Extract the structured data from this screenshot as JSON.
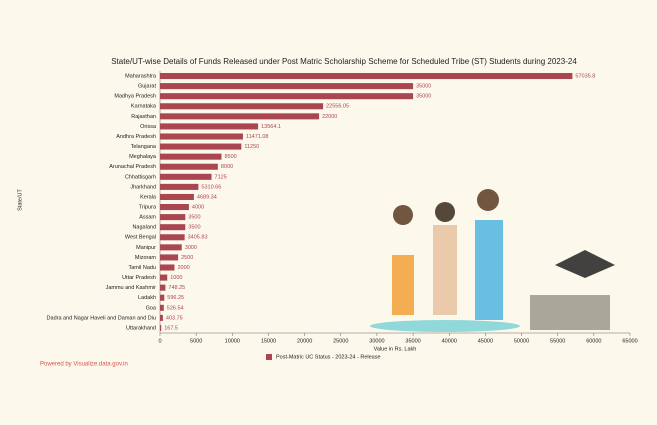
{
  "chart_data": {
    "type": "bar",
    "title": "State/UT-wise Details of Funds Released under Post Matric Scholarship Scheme for Scheduled Tribe (ST) Students during 2023-24",
    "x_label": "Value in Rs. Lakh",
    "y_label": "State/UT",
    "categories": [
      "Maharashtra",
      "Gujarat",
      "Madhya Pradesh",
      "Karnataka",
      "Rajasthan",
      "Orissa",
      "Andhra Pradesh",
      "Telangana",
      "Meghalaya",
      "Arunachal Pradesh",
      "Chhattisgarh",
      "Jharkhand",
      "Kerala",
      "Tripura",
      "Assam",
      "Nagaland",
      "West Bengal",
      "Manipur",
      "Mizoram",
      "Tamil Nadu",
      "Uttar Pradesh",
      "Jammu and Kashmir",
      "Ladakh",
      "Goa",
      "Dadra and Nagar Haveli and Daman and Diu",
      "Uttarakhand"
    ],
    "series": [
      {
        "name": "Post-Matric UC Status - 2023-24 - Release",
        "color": "#a9464f",
        "values": [
          57035.8,
          35000,
          35000,
          22556.05,
          22000,
          13564.1,
          11471.08,
          11250,
          8500,
          8000,
          7125,
          5310.66,
          4689.34,
          4000,
          3500,
          3500,
          3405.83,
          3000,
          2500,
          2000,
          1000,
          748.25,
          596.25,
          526.54,
          403.75,
          167.5
        ]
      }
    ],
    "xlim": [
      0,
      65000
    ],
    "xticks": [
      0,
      5000,
      10000,
      15000,
      20000,
      25000,
      30000,
      35000,
      40000,
      45000,
      50000,
      55000,
      60000,
      65000
    ],
    "footer": "Powered by Visualize.data.gov.in"
  }
}
